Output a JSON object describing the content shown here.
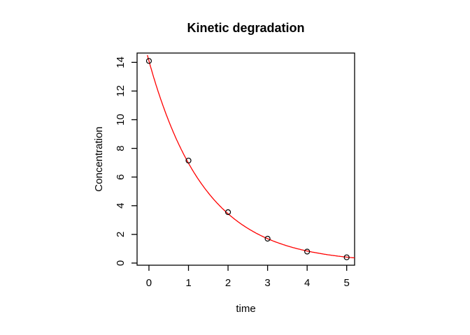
{
  "window": {
    "background_color": "#ffffff",
    "foreground_color": "#000000"
  },
  "chart_data": {
    "type": "scatter",
    "title": "Kinetic degradation",
    "xlabel": "time",
    "ylabel": "Concentration",
    "x": [
      0,
      1,
      2,
      3,
      4,
      5
    ],
    "y": [
      14.1,
      7.15,
      3.55,
      1.7,
      0.8,
      0.4
    ],
    "xticks": [
      0,
      1,
      2,
      3,
      4,
      5
    ],
    "yticks": [
      0,
      2,
      4,
      6,
      8,
      10,
      12,
      14
    ],
    "xlim": [
      -0.3,
      5.2
    ],
    "ylim": [
      -0.15,
      14.65
    ],
    "grid": false,
    "box": true,
    "series": [
      {
        "name": "observed-points",
        "type": "points",
        "marker": "open-circle",
        "color": "#000000"
      },
      {
        "name": "fitted-exponential",
        "type": "curve",
        "model": "C0 * exp(-k * t)",
        "C0": 14.1,
        "k": 0.705,
        "color": "#ff0000"
      }
    ]
  }
}
